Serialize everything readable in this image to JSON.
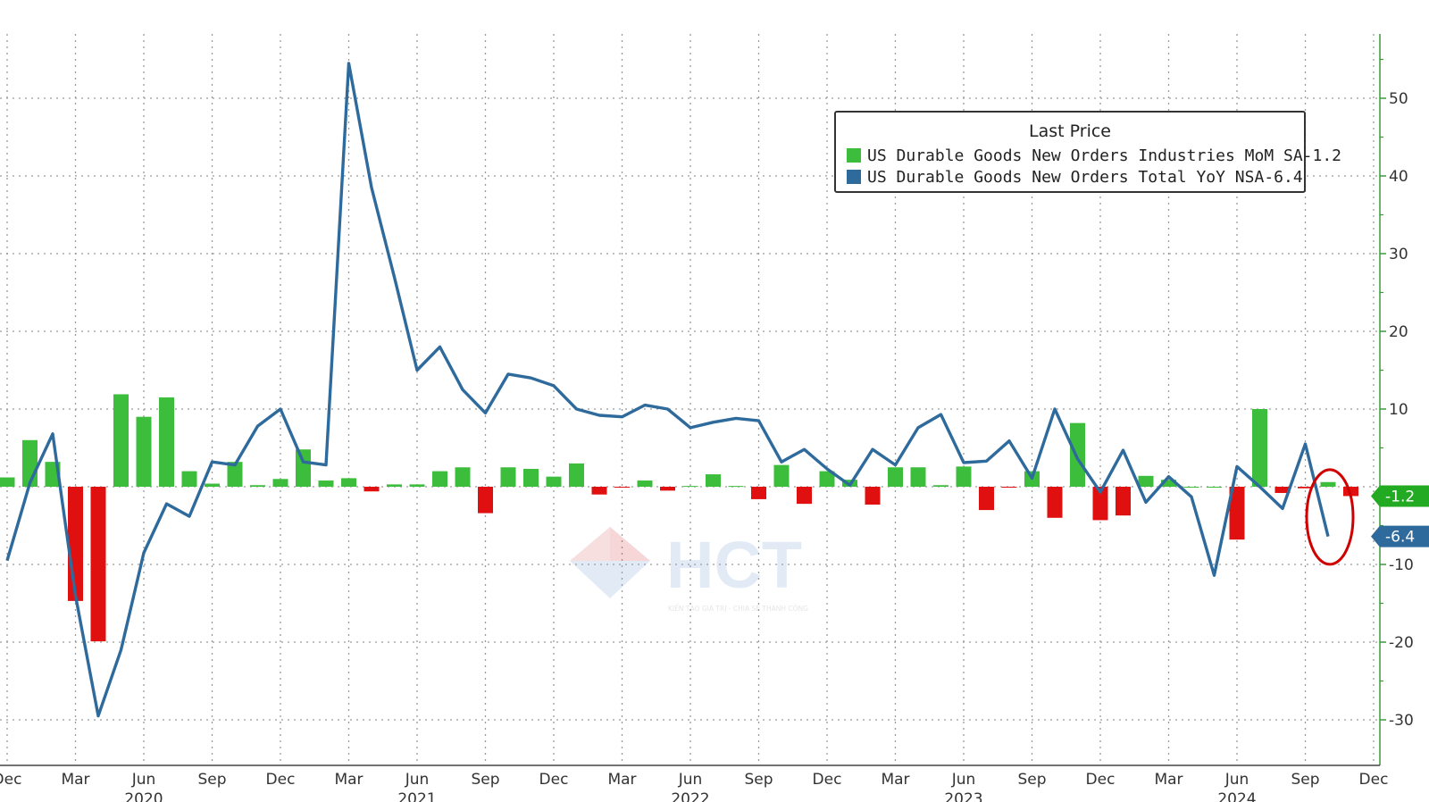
{
  "chart_data": {
    "type": "bar+line",
    "legend_title": "Last Price",
    "legend_placement": "top-right",
    "grid": true,
    "y_axis_side": "right",
    "ylim": [
      -35,
      58
    ],
    "yticks": [
      50,
      40,
      30,
      20,
      10,
      -10,
      -20,
      -30
    ],
    "yticklabels": [
      "50",
      "40",
      "30",
      "20",
      "10",
      "-10",
      "-20",
      "-30"
    ],
    "x_start": "2019-12",
    "xticklabels": [
      "Dec",
      "Mar",
      "Jun",
      "Sep",
      "Dec",
      "Mar",
      "Jun",
      "Sep",
      "Dec",
      "Mar",
      "Jun",
      "Sep",
      "Dec",
      "Mar",
      "Jun",
      "Sep",
      "Dec",
      "Mar",
      "Jun",
      "Sep",
      "Dec"
    ],
    "year_labels": [
      {
        "label": "2020",
        "month_index": 6
      },
      {
        "label": "2021",
        "month_index": 18
      },
      {
        "label": "2022",
        "month_index": 30
      },
      {
        "label": "2023",
        "month_index": 42
      },
      {
        "label": "2024",
        "month_index": 54
      }
    ],
    "series": [
      {
        "name": "US Durable Goods New Orders Industries MoM SA",
        "type": "bar",
        "last_value_label": "-1.2",
        "positive_color": "#3cbd3c",
        "negative_color": "#e01010",
        "values": [
          1.2,
          6.0,
          3.2,
          -14.7,
          -19.9,
          11.9,
          9.0,
          11.5,
          2.0,
          0.4,
          3.2,
          0.2,
          1.0,
          4.8,
          0.8,
          1.1,
          -0.6,
          0.3,
          0.3,
          2.0,
          2.5,
          -3.4,
          2.5,
          2.3,
          1.3,
          3.0,
          -1.0,
          -0.1,
          0.8,
          -0.5,
          0.1,
          1.6,
          0.1,
          -1.6,
          2.8,
          -2.2,
          2.0,
          0.9,
          -2.3,
          2.5,
          2.5,
          0.2,
          2.6,
          -3.0,
          -0.1,
          2.0,
          -4.0,
          8.2,
          -4.3,
          -3.7,
          1.4,
          0.9,
          0.0,
          0.0,
          -6.8,
          10.0,
          -0.8,
          -0.2,
          0.6,
          -1.2
        ]
      },
      {
        "name": "US Durable Goods New Orders Total YoY NSA",
        "type": "line",
        "last_value_label": "-6.4",
        "color": "#2e6a9c",
        "values": [
          -9.5,
          0.5,
          6.8,
          -14.0,
          -29.5,
          -21.0,
          -8.5,
          -2.2,
          -3.8,
          3.2,
          2.8,
          7.8,
          10.0,
          3.2,
          2.8,
          54.5,
          38.5,
          27.0,
          15.0,
          18.0,
          12.5,
          9.5,
          14.5,
          14.0,
          13.0,
          10.0,
          9.2,
          9.0,
          10.5,
          10.0,
          7.6,
          8.3,
          8.8,
          8.5,
          3.2,
          4.8,
          2.3,
          0.2,
          4.8,
          2.8,
          7.6,
          9.3,
          3.1,
          3.3,
          5.9,
          1.1,
          10.0,
          3.6,
          -0.7,
          4.7,
          -2.0,
          1.3,
          -1.3,
          -11.4,
          2.6,
          0.0,
          -2.8,
          5.5,
          -6.4
        ]
      }
    ]
  },
  "watermark": {
    "text": "HCT",
    "tagline": "KIẾN TẠO GIÁ TRỊ - CHIA SẺ THÀNH CÔNG"
  },
  "colors": {
    "grid": "#9a9a9a",
    "axis": "#3a9a3a",
    "text": "#333333",
    "highlight_circle": "#d00000",
    "label_bar_bg": "#22aa22",
    "label_line_bg": "#2e6a9c"
  }
}
